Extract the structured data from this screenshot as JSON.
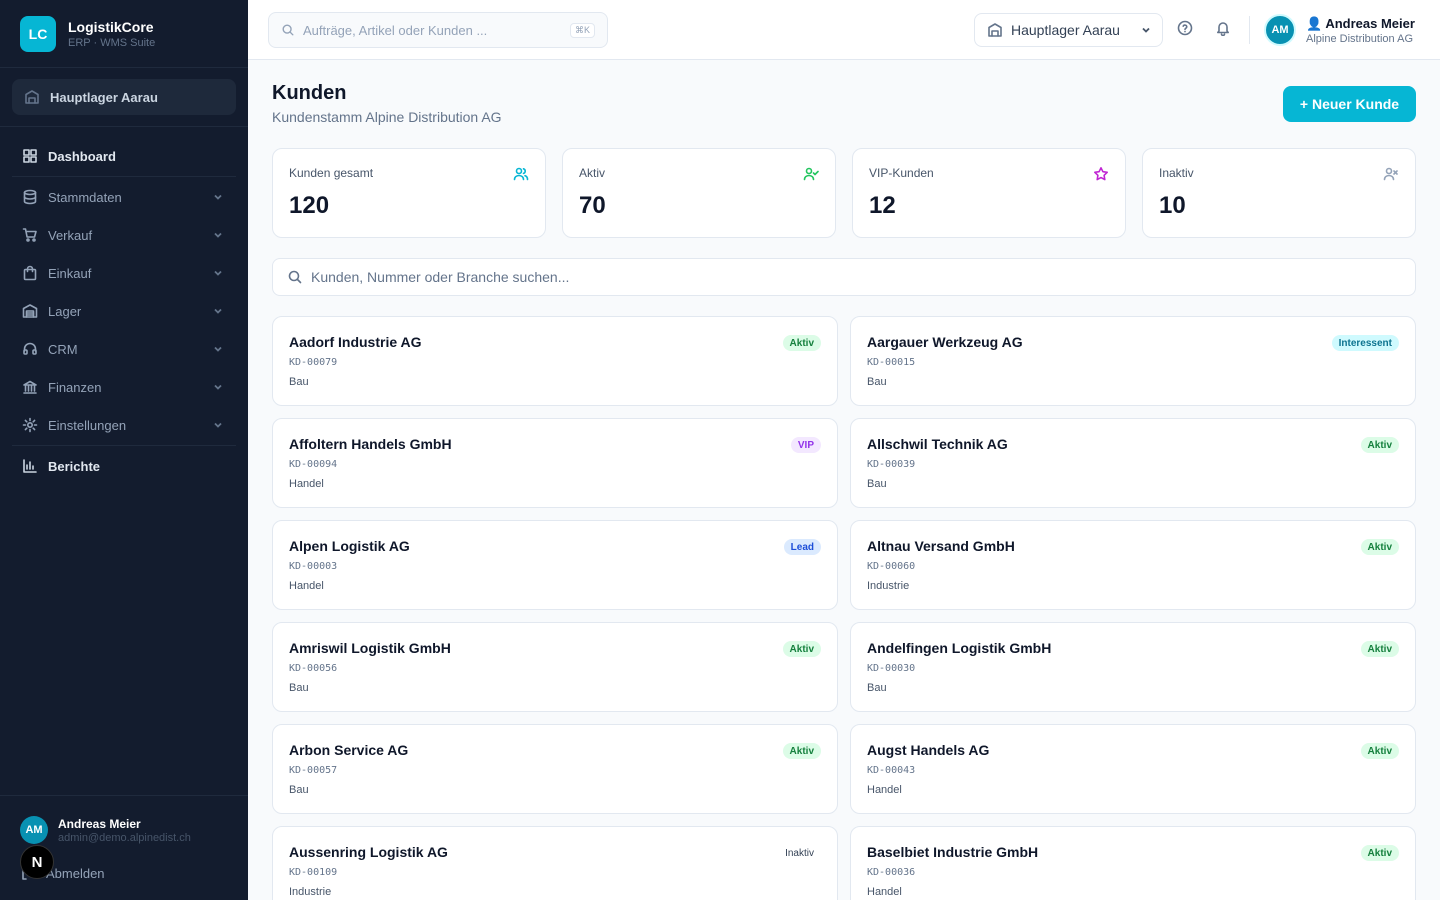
{
  "brand": {
    "logo": "LC",
    "name": "LogistikCore",
    "subtitle": "ERP · WMS Suite"
  },
  "sidebar": {
    "warehouse": "Hauptlager Aarau",
    "items": [
      {
        "label": "Dashboard",
        "icon": "grid-icon"
      },
      {
        "label": "Stammdaten",
        "icon": "database-icon"
      },
      {
        "label": "Verkauf",
        "icon": "cart-icon"
      },
      {
        "label": "Einkauf",
        "icon": "bag-icon"
      },
      {
        "label": "Lager",
        "icon": "warehouse-icon"
      },
      {
        "label": "CRM",
        "icon": "headset-icon"
      },
      {
        "label": "Finanzen",
        "icon": "bank-icon"
      },
      {
        "label": "Einstellungen",
        "icon": "gear-icon"
      },
      {
        "label": "Berichte",
        "icon": "bar-chart-icon"
      }
    ],
    "user": {
      "initials": "AM",
      "name": "Andreas Meier",
      "email": "admin@demo.alpinedist.ch"
    },
    "logout": "Abmelden"
  },
  "topbar": {
    "search_placeholder": "Aufträge, Artikel oder Kunden ...",
    "shortcut": "⌘K",
    "warehouse": "Hauptlager Aarau",
    "user": {
      "initials": "AM",
      "name": "Andreas Meier",
      "company": "Alpine Distribution AG"
    }
  },
  "page": {
    "title": "Kunden",
    "subtitle": "Kundenstamm Alpine Distribution AG",
    "new_button": "+ Neuer Kunde",
    "search_placeholder": "Kunden, Nummer oder Branche suchen..."
  },
  "stats": [
    {
      "label": "Kunden gesamt",
      "value": "120",
      "icon": "users-icon",
      "color": "#06b6d4"
    },
    {
      "label": "Aktiv",
      "value": "70",
      "icon": "user-check-icon",
      "color": "#22c55e"
    },
    {
      "label": "VIP-Kunden",
      "value": "12",
      "icon": "star-icon",
      "color": "#c026d3"
    },
    {
      "label": "Inaktiv",
      "value": "10",
      "icon": "user-x-icon",
      "color": "#94a3b8"
    }
  ],
  "customers": [
    {
      "name": "Aadorf Industrie AG",
      "number": "KD-00079",
      "industry": "Bau",
      "status": "Aktiv",
      "status_key": "aktiv"
    },
    {
      "name": "Aargauer Werkzeug AG",
      "number": "KD-00015",
      "industry": "Bau",
      "status": "Interessent",
      "status_key": "interessent"
    },
    {
      "name": "Affoltern Handels GmbH",
      "number": "KD-00094",
      "industry": "Handel",
      "status": "VIP",
      "status_key": "vip"
    },
    {
      "name": "Allschwil Technik AG",
      "number": "KD-00039",
      "industry": "Bau",
      "status": "Aktiv",
      "status_key": "aktiv"
    },
    {
      "name": "Alpen Logistik AG",
      "number": "KD-00003",
      "industry": "Handel",
      "status": "Lead",
      "status_key": "lead"
    },
    {
      "name": "Altnau Versand GmbH",
      "number": "KD-00060",
      "industry": "Industrie",
      "status": "Aktiv",
      "status_key": "aktiv"
    },
    {
      "name": "Amriswil Logistik GmbH",
      "number": "KD-00056",
      "industry": "Bau",
      "status": "Aktiv",
      "status_key": "aktiv"
    },
    {
      "name": "Andelfingen Logistik GmbH",
      "number": "KD-00030",
      "industry": "Bau",
      "status": "Aktiv",
      "status_key": "aktiv"
    },
    {
      "name": "Arbon Service AG",
      "number": "KD-00057",
      "industry": "Bau",
      "status": "Aktiv",
      "status_key": "aktiv"
    },
    {
      "name": "Augst Handels AG",
      "number": "KD-00043",
      "industry": "Handel",
      "status": "Aktiv",
      "status_key": "aktiv"
    },
    {
      "name": "Aussenring Logistik AG",
      "number": "KD-00109",
      "industry": "Industrie",
      "status": "Inaktiv",
      "status_key": "inaktiv"
    },
    {
      "name": "Baselbiet Industrie GmbH",
      "number": "KD-00036",
      "industry": "Handel",
      "status": "Aktiv",
      "status_key": "aktiv"
    }
  ]
}
